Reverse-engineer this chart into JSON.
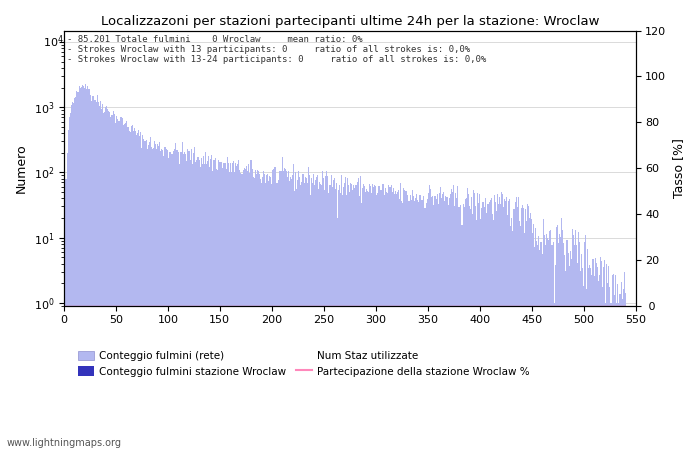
{
  "title": "Localizzazoni per stazioni partecipanti ultime 24h per la stazione: Wroclaw",
  "annotation_lines": [
    "85.201 Totale fulmini    0 Wroclaw     mean ratio: 0%",
    "Strokes Wroclaw with 13 participants: 0     ratio of all strokes is: 0,0%",
    "Strokes Wroclaw with 13-24 participants: 0     ratio of all strokes is: 0,0%"
  ],
  "ylabel_left": "Numero",
  "ylabel_right": "Tasso [%]",
  "xlim": [
    0,
    550
  ],
  "ylim_right": [
    0,
    120
  ],
  "bar_color": "#b3b8f0",
  "station_bar_color": "#3333bb",
  "line_color": "#ff88bb",
  "legend_labels": [
    "Conteggio fulmini (rete)",
    "Conteggio fulmini stazione Wroclaw",
    "Num Staz utilizzate",
    "Partecipazione della stazione Wroclaw %"
  ],
  "watermark": "www.lightningmaps.org",
  "background_color": "#ffffff",
  "grid_color": "#cccccc"
}
